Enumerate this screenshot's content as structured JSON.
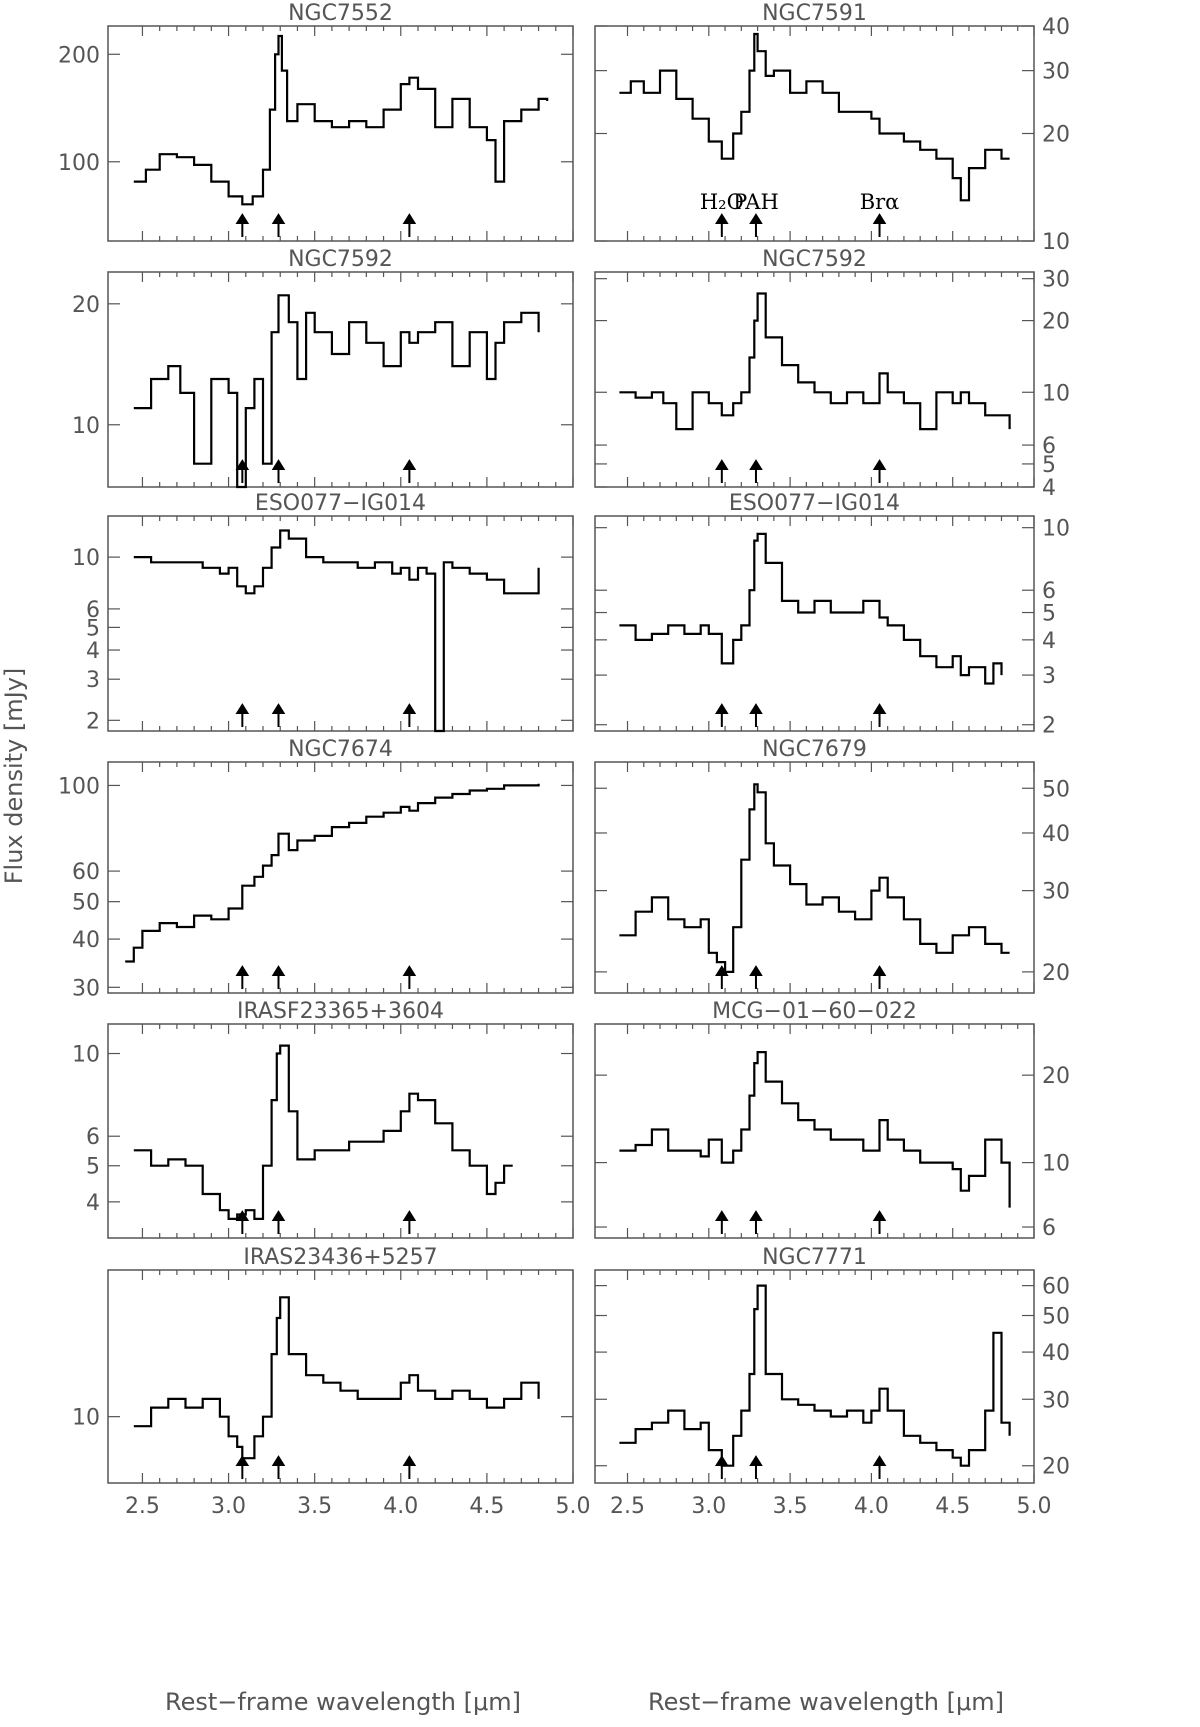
{
  "figure": {
    "ylabel": "Flux density [mJy]",
    "xlabel": "Rest−frame wavelength [μm]",
    "xlim": [
      2.3,
      5.0
    ],
    "xticks": [
      2.5,
      3.0,
      3.5,
      4.0,
      4.5,
      5.0
    ],
    "xtick_labels": [
      "2.5",
      "3.0",
      "3.5",
      "4.0",
      "4.5",
      "5.0"
    ],
    "arrow_x": [
      3.08,
      3.29,
      4.05
    ],
    "line_labels": [
      "H₂O",
      "PAH",
      "Brα"
    ]
  },
  "chart_data": [
    {
      "type": "line",
      "title": "NGC7552",
      "yscale": "log",
      "ylim": [
        60,
        240
      ],
      "yticks": [
        100,
        200
      ],
      "ytick_labels": [
        "100",
        "200"
      ],
      "series": [
        {
          "x": [
            2.45,
            2.52,
            2.6,
            2.7,
            2.8,
            2.9,
            3.0,
            3.08,
            3.14,
            3.2,
            3.24,
            3.27,
            3.29,
            3.31,
            3.34,
            3.4,
            3.5,
            3.6,
            3.7,
            3.8,
            3.9,
            4.0,
            4.05,
            4.1,
            4.2,
            4.3,
            4.4,
            4.5,
            4.55,
            4.6,
            4.7,
            4.8,
            4.85
          ],
          "values": [
            88,
            95,
            105,
            103,
            98,
            88,
            80,
            76,
            80,
            95,
            140,
            200,
            225,
            180,
            130,
            145,
            130,
            125,
            130,
            125,
            140,
            165,
            172,
            160,
            125,
            150,
            125,
            115,
            88,
            130,
            140,
            150,
            148
          ]
        }
      ]
    },
    {
      "type": "line",
      "title": "NGC7591",
      "yscale": "log",
      "ylim": [
        10,
        40
      ],
      "yticks": [
        10,
        20,
        30,
        40
      ],
      "ytick_labels": [
        "10",
        "20",
        "30",
        "40"
      ],
      "series": [
        {
          "x": [
            2.45,
            2.52,
            2.6,
            2.7,
            2.8,
            2.9,
            3.0,
            3.08,
            3.15,
            3.2,
            3.25,
            3.28,
            3.3,
            3.35,
            3.4,
            3.5,
            3.6,
            3.7,
            3.8,
            3.9,
            4.0,
            4.05,
            4.1,
            4.2,
            4.3,
            4.4,
            4.5,
            4.55,
            4.6,
            4.7,
            4.8,
            4.85
          ],
          "values": [
            26,
            28,
            26,
            30,
            25,
            22,
            19,
            17,
            20,
            23,
            30,
            38,
            34,
            29,
            30,
            26,
            28,
            26,
            23,
            23,
            22,
            20,
            20,
            19,
            18,
            17,
            15,
            13,
            16,
            18,
            17,
            17
          ]
        }
      ]
    },
    {
      "type": "line",
      "title": "NGC7592",
      "yscale": "log",
      "ylim": [
        7,
        24
      ],
      "yticks": [
        10,
        20
      ],
      "ytick_labels": [
        "10",
        "20"
      ],
      "series": [
        {
          "x": [
            2.45,
            2.55,
            2.65,
            2.72,
            2.8,
            2.9,
            3.0,
            3.05,
            3.1,
            3.15,
            3.2,
            3.25,
            3.29,
            3.35,
            3.4,
            3.45,
            3.5,
            3.6,
            3.7,
            3.8,
            3.9,
            4.0,
            4.05,
            4.1,
            4.2,
            4.3,
            4.4,
            4.5,
            4.55,
            4.6,
            4.7,
            4.8
          ],
          "values": [
            11,
            13,
            14,
            12,
            8,
            13,
            12,
            7,
            11,
            13,
            8,
            17,
            21,
            18,
            13,
            19,
            17,
            15,
            18,
            16,
            14,
            17,
            16,
            17,
            18,
            14,
            17,
            13,
            16,
            18,
            19,
            17
          ]
        }
      ]
    },
    {
      "type": "line",
      "title": "NGC7592",
      "yscale": "log",
      "ylim": [
        4,
        32
      ],
      "yticks": [
        4,
        5,
        6,
        10,
        20,
        30
      ],
      "ytick_labels": [
        "4",
        "5",
        "6",
        "10",
        "20",
        "30"
      ],
      "series": [
        {
          "x": [
            2.45,
            2.55,
            2.65,
            2.72,
            2.8,
            2.9,
            3.0,
            3.08,
            3.15,
            3.2,
            3.25,
            3.28,
            3.3,
            3.35,
            3.45,
            3.55,
            3.65,
            3.75,
            3.85,
            3.95,
            4.0,
            4.05,
            4.1,
            4.2,
            4.3,
            4.4,
            4.5,
            4.55,
            4.6,
            4.7,
            4.8,
            4.85
          ],
          "values": [
            10,
            9.5,
            10,
            9,
            7,
            10,
            9,
            8,
            9,
            10,
            14,
            20,
            26,
            17,
            13,
            11,
            10,
            9,
            10,
            9,
            9,
            12,
            10,
            9,
            7,
            10,
            9,
            10,
            9,
            8,
            8,
            7
          ]
        }
      ]
    },
    {
      "type": "line",
      "title": "ESO077−IG014",
      "yscale": "log",
      "ylim": [
        1.8,
        15
      ],
      "yticks": [
        2,
        3,
        4,
        5,
        6,
        10
      ],
      "ytick_labels": [
        "2",
        "3",
        "4",
        "5",
        "6",
        "10"
      ],
      "series": [
        {
          "x": [
            2.45,
            2.55,
            2.65,
            2.75,
            2.85,
            2.95,
            3.0,
            3.05,
            3.1,
            3.15,
            3.2,
            3.25,
            3.3,
            3.35,
            3.45,
            3.55,
            3.65,
            3.75,
            3.85,
            3.95,
            4.0,
            4.05,
            4.1,
            4.15,
            4.2,
            4.25,
            4.3,
            4.4,
            4.5,
            4.6,
            4.7,
            4.8
          ],
          "values": [
            10,
            9.5,
            9.5,
            9.5,
            9,
            8.5,
            9,
            7.5,
            7,
            7.5,
            9,
            11,
            13,
            12,
            10,
            9.5,
            9.5,
            9,
            9.5,
            8.5,
            9,
            8,
            9,
            8.5,
            1.8,
            9.5,
            9,
            8.5,
            8,
            7,
            7,
            9
          ]
        }
      ]
    },
    {
      "type": "line",
      "title": "ESO077−IG014",
      "yscale": "log",
      "ylim": [
        1.9,
        11
      ],
      "yticks": [
        2,
        3,
        4,
        5,
        6,
        10
      ],
      "ytick_labels": [
        "2",
        "3",
        "4",
        "5",
        "6",
        "10"
      ],
      "series": [
        {
          "x": [
            2.45,
            2.55,
            2.65,
            2.75,
            2.85,
            2.95,
            3.0,
            3.08,
            3.15,
            3.2,
            3.25,
            3.28,
            3.3,
            3.35,
            3.45,
            3.55,
            3.65,
            3.75,
            3.85,
            3.95,
            4.05,
            4.1,
            4.2,
            4.3,
            4.4,
            4.5,
            4.55,
            4.6,
            4.7,
            4.75,
            4.8
          ],
          "values": [
            4.5,
            4,
            4.2,
            4.5,
            4.2,
            4.5,
            4.2,
            3.3,
            4,
            4.5,
            6,
            9,
            9.5,
            7.5,
            5.5,
            5,
            5.5,
            5,
            5,
            5.5,
            4.8,
            4.5,
            4,
            3.5,
            3.2,
            3.5,
            3,
            3.2,
            2.8,
            3.3,
            3
          ]
        }
      ]
    },
    {
      "type": "line",
      "title": "NGC7674",
      "yscale": "log",
      "ylim": [
        29,
        115
      ],
      "yticks": [
        30,
        40,
        50,
        60,
        100
      ],
      "ytick_labels": [
        "30",
        "40",
        "50",
        "60",
        "100"
      ],
      "series": [
        {
          "x": [
            2.4,
            2.45,
            2.5,
            2.6,
            2.7,
            2.8,
            2.9,
            3.0,
            3.08,
            3.15,
            3.2,
            3.25,
            3.29,
            3.35,
            3.4,
            3.5,
            3.6,
            3.7,
            3.8,
            3.9,
            4.0,
            4.05,
            4.1,
            4.2,
            4.3,
            4.4,
            4.5,
            4.6,
            4.7,
            4.8
          ],
          "values": [
            35,
            38,
            42,
            44,
            43,
            46,
            45,
            48,
            55,
            58,
            62,
            66,
            75,
            68,
            72,
            74,
            78,
            80,
            83,
            85,
            88,
            86,
            90,
            93,
            95,
            97,
            98,
            100,
            100,
            101
          ]
        }
      ]
    },
    {
      "type": "line",
      "title": "NGC7679",
      "yscale": "log",
      "ylim": [
        18,
        57
      ],
      "yticks": [
        20,
        30,
        40,
        50
      ],
      "ytick_labels": [
        "20",
        "30",
        "40",
        "50"
      ],
      "series": [
        {
          "x": [
            2.45,
            2.55,
            2.65,
            2.75,
            2.85,
            2.95,
            3.0,
            3.05,
            3.1,
            3.15,
            3.2,
            3.25,
            3.28,
            3.3,
            3.35,
            3.4,
            3.5,
            3.6,
            3.7,
            3.8,
            3.9,
            4.0,
            4.05,
            4.1,
            4.2,
            4.3,
            4.4,
            4.5,
            4.6,
            4.7,
            4.8,
            4.85
          ],
          "values": [
            24,
            27,
            29,
            26,
            25,
            26,
            22,
            21,
            20,
            25,
            35,
            45,
            51,
            49,
            38,
            34,
            31,
            28,
            29,
            27,
            26,
            30,
            32,
            29,
            26,
            23,
            22,
            24,
            25,
            23,
            22,
            22
          ]
        }
      ]
    },
    {
      "type": "line",
      "title": "IRASF23365+3604",
      "yscale": "log",
      "ylim": [
        3.2,
        12
      ],
      "yticks": [
        4,
        5,
        6,
        10
      ],
      "ytick_labels": [
        "4",
        "5",
        "6",
        "10"
      ],
      "series": [
        {
          "x": [
            2.45,
            2.55,
            2.65,
            2.75,
            2.85,
            2.95,
            3.0,
            3.05,
            3.1,
            3.15,
            3.2,
            3.25,
            3.28,
            3.3,
            3.35,
            3.4,
            3.5,
            3.6,
            3.7,
            3.8,
            3.9,
            4.0,
            4.05,
            4.1,
            4.2,
            4.3,
            4.4,
            4.5,
            4.55,
            4.6,
            4.65
          ],
          "values": [
            5.5,
            5,
            5.2,
            5,
            4.2,
            3.8,
            3.6,
            3.7,
            3.8,
            3.6,
            5,
            7.5,
            10,
            10.5,
            7,
            5.2,
            5.5,
            5.5,
            5.8,
            5.8,
            6.2,
            7,
            7.8,
            7.5,
            6.5,
            5.5,
            5,
            4.2,
            4.5,
            5,
            5
          ]
        }
      ]
    },
    {
      "type": "line",
      "title": "MCG−01−60−022",
      "yscale": "log",
      "ylim": [
        5.5,
        30
      ],
      "yticks": [
        6,
        10,
        20
      ],
      "ytick_labels": [
        "6",
        "10",
        "20"
      ],
      "series": [
        {
          "x": [
            2.45,
            2.55,
            2.65,
            2.75,
            2.85,
            2.95,
            3.0,
            3.08,
            3.15,
            3.2,
            3.25,
            3.28,
            3.3,
            3.35,
            3.45,
            3.55,
            3.65,
            3.75,
            3.85,
            3.95,
            4.0,
            4.05,
            4.1,
            4.2,
            4.3,
            4.4,
            4.5,
            4.55,
            4.6,
            4.7,
            4.8,
            4.85
          ],
          "values": [
            11,
            11.5,
            13,
            11,
            11,
            10.5,
            12,
            10,
            11,
            13,
            17,
            22,
            24,
            19,
            16,
            14,
            13,
            12,
            12,
            11,
            11,
            14,
            12,
            11,
            10,
            10,
            9.5,
            8,
            9,
            12,
            10,
            7
          ]
        }
      ]
    },
    {
      "type": "line",
      "title": "IRAS23436+5257",
      "yscale": "log",
      "ylim": [
        7,
        22
      ],
      "yticks": [
        10
      ],
      "ytick_labels": [
        "10"
      ],
      "series": [
        {
          "x": [
            2.45,
            2.55,
            2.65,
            2.75,
            2.85,
            2.95,
            3.0,
            3.05,
            3.08,
            3.12,
            3.15,
            3.2,
            3.25,
            3.28,
            3.3,
            3.35,
            3.45,
            3.55,
            3.65,
            3.75,
            3.85,
            3.95,
            4.0,
            4.05,
            4.1,
            4.2,
            4.3,
            4.4,
            4.5,
            4.6,
            4.7,
            4.8
          ],
          "values": [
            9.5,
            10.5,
            11,
            10.5,
            11,
            10,
            9,
            8.5,
            8,
            8,
            9,
            10,
            14,
            17,
            19,
            14,
            12.5,
            12,
            11.5,
            11,
            11,
            11,
            12,
            12.5,
            11.5,
            11,
            11.5,
            11,
            10.5,
            11,
            12,
            11
          ]
        }
      ]
    },
    {
      "type": "line",
      "title": "NGC7771",
      "yscale": "log",
      "ylim": [
        18,
        66
      ],
      "yticks": [
        20,
        30,
        40,
        50,
        60
      ],
      "ytick_labels": [
        "20",
        "30",
        "40",
        "50",
        "60"
      ],
      "series": [
        {
          "x": [
            2.45,
            2.55,
            2.65,
            2.75,
            2.85,
            2.95,
            3.0,
            3.08,
            3.15,
            3.2,
            3.25,
            3.28,
            3.3,
            3.35,
            3.45,
            3.55,
            3.65,
            3.75,
            3.85,
            3.95,
            4.0,
            4.05,
            4.1,
            4.2,
            4.3,
            4.4,
            4.5,
            4.55,
            4.6,
            4.7,
            4.75,
            4.8,
            4.85
          ],
          "values": [
            23,
            25,
            26,
            28,
            25,
            26,
            22,
            20,
            24,
            28,
            35,
            52,
            60,
            35,
            30,
            29,
            28,
            27,
            28,
            26,
            28,
            32,
            28,
            24,
            23,
            22,
            21,
            20,
            22,
            28,
            45,
            26,
            24
          ]
        }
      ]
    }
  ]
}
